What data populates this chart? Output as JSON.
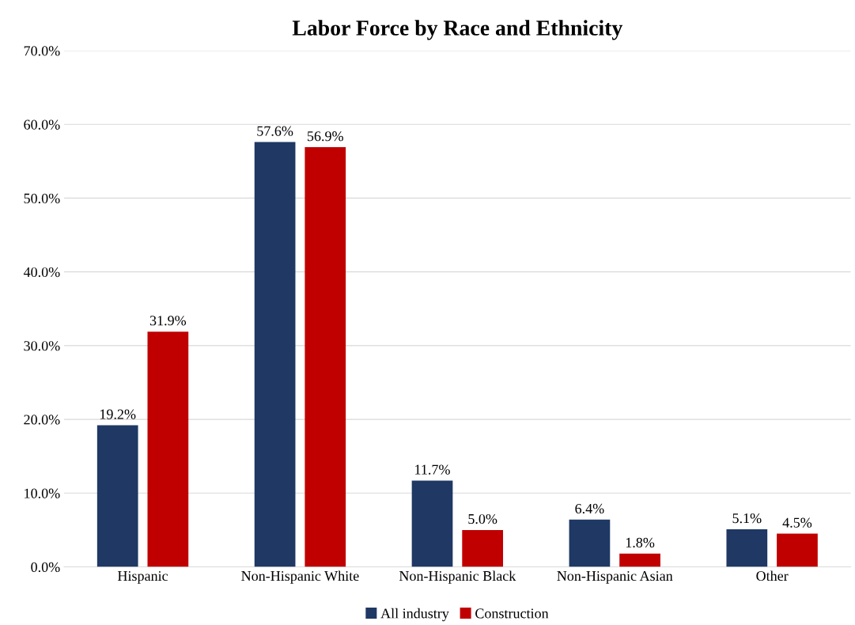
{
  "chart_data": {
    "type": "bar",
    "title": "Labor Force by Race and Ethnicity",
    "categories": [
      "Hispanic",
      "Non-Hispanic White",
      "Non-Hispanic Black",
      "Non-Hispanic Asian",
      "Other"
    ],
    "series": [
      {
        "name": "All industry",
        "color": "#1f3864",
        "values": [
          19.2,
          57.6,
          11.7,
          6.4,
          5.1
        ],
        "value_labels": [
          "19.2%",
          "57.6%",
          "11.7%",
          "6.4%",
          "5.1%"
        ]
      },
      {
        "name": "Construction",
        "color": "#c00000",
        "values": [
          31.9,
          56.9,
          5.0,
          1.8,
          4.5
        ],
        "value_labels": [
          "31.9%",
          "56.9%",
          "5.0%",
          "1.8%",
          "4.5%"
        ]
      }
    ],
    "ylim": [
      0,
      70
    ],
    "yticks": [
      {
        "value": 0,
        "label": "0.0%"
      },
      {
        "value": 10,
        "label": "10.0%"
      },
      {
        "value": 20,
        "label": "20.0%"
      },
      {
        "value": 30,
        "label": "30.0%"
      },
      {
        "value": 40,
        "label": "40.0%"
      },
      {
        "value": 50,
        "label": "50.0%"
      },
      {
        "value": 60,
        "label": "60.0%"
      },
      {
        "value": 70,
        "label": "70.0%"
      }
    ],
    "grid": "y",
    "legend": "bottom"
  }
}
